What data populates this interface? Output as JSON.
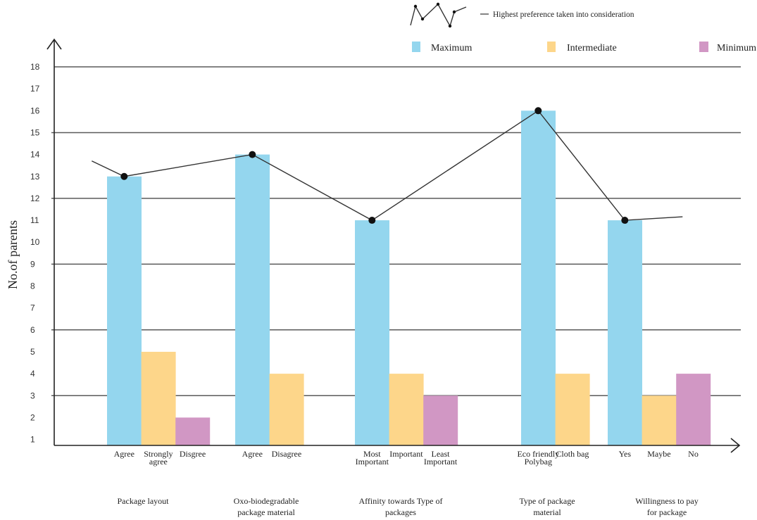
{
  "chart_data": {
    "type": "bar",
    "title": "",
    "xlabel": "",
    "ylabel": "No.of parents",
    "ylim": [
      0,
      18
    ],
    "yticks": [
      "18",
      "17",
      "16",
      "15",
      "14",
      "13",
      "12",
      "11",
      "10",
      "9",
      "8",
      "7",
      "6",
      "5",
      "4",
      "3",
      "2",
      "1"
    ],
    "grid": true,
    "gridlines_at": [
      18,
      15,
      12,
      9,
      6,
      3
    ],
    "legend": {
      "placement": "top-right",
      "entries": [
        {
          "name": "Maximum",
          "color": "#94d6ee"
        },
        {
          "name": "Intermediate",
          "color": "#fdd68a"
        },
        {
          "name": "Minimum",
          "color": "#d197c4"
        }
      ]
    },
    "preference_line": {
      "label": "Highest preference taken into consideration",
      "values": [
        13,
        14,
        11,
        16,
        11
      ]
    },
    "groups": [
      {
        "label_lines": [
          "Package layout"
        ],
        "bars": [
          {
            "label_lines": [
              "Agree"
            ],
            "level": "Maximum",
            "value": 13
          },
          {
            "label_lines": [
              "Strongly",
              "agree"
            ],
            "level": "Intermediate",
            "value": 5
          },
          {
            "label_lines": [
              "Disgree"
            ],
            "level": "Minimum",
            "value": 2
          }
        ]
      },
      {
        "label_lines": [
          "Oxo-biodegradable",
          "package material"
        ],
        "bars": [
          {
            "label_lines": [
              "Agree"
            ],
            "level": "Maximum",
            "value": 14
          },
          {
            "label_lines": [
              "Disagree"
            ],
            "level": "Intermediate",
            "value": 4
          }
        ]
      },
      {
        "label_lines": [
          "Affinity towards Type of",
          "packages"
        ],
        "bars": [
          {
            "label_lines": [
              "Most",
              "Important"
            ],
            "level": "Maximum",
            "value": 11
          },
          {
            "label_lines": [
              "Important"
            ],
            "level": "Intermediate",
            "value": 4
          },
          {
            "label_lines": [
              "Least",
              "Important"
            ],
            "level": "Minimum",
            "value": 3
          }
        ]
      },
      {
        "label_lines": [
          "Type of package",
          "material"
        ],
        "bars": [
          {
            "label_lines": [
              "Eco friendly",
              "Polybag"
            ],
            "level": "Maximum",
            "value": 16
          },
          {
            "label_lines": [
              "Cloth bag"
            ],
            "level": "Intermediate",
            "value": 4
          }
        ]
      },
      {
        "label_lines": [
          "Willingness to pay",
          "for package"
        ],
        "bars": [
          {
            "label_lines": [
              "Yes"
            ],
            "level": "Maximum",
            "value": 11
          },
          {
            "label_lines": [
              "Maybe"
            ],
            "level": "Intermediate",
            "value": 3
          },
          {
            "label_lines": [
              "No"
            ],
            "level": "Minimum",
            "value": 4
          }
        ]
      }
    ]
  }
}
